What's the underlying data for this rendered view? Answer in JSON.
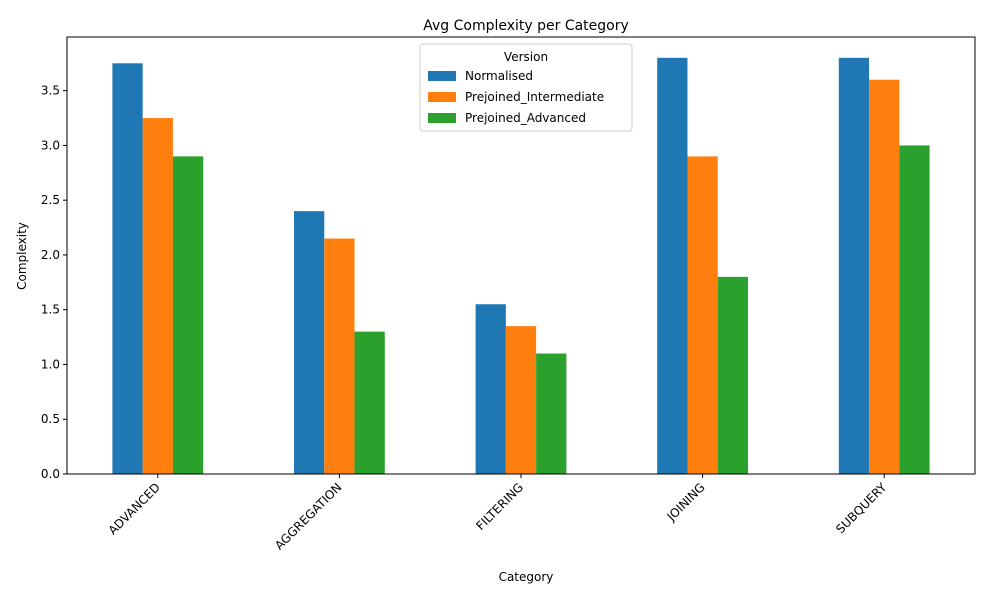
{
  "chart_data": {
    "type": "bar",
    "title": "Avg Complexity per Category",
    "xlabel": "Category",
    "ylabel": "Complexity",
    "categories": [
      "ADVANCED",
      "AGGREGATION",
      "FILTERING",
      "JOINING",
      "SUBQUERY"
    ],
    "series": [
      {
        "name": "Normalised",
        "values": [
          3.75,
          2.4,
          1.55,
          3.8,
          3.8
        ],
        "color": "#1f77b4"
      },
      {
        "name": "Prejoined_Intermediate",
        "values": [
          3.25,
          2.15,
          1.35,
          2.9,
          3.6
        ],
        "color": "#ff7f0e"
      },
      {
        "name": "Prejoined_Advanced",
        "values": [
          2.9,
          1.3,
          1.1,
          1.8,
          3.0
        ],
        "color": "#2ca02c"
      }
    ],
    "ylim": [
      0,
      3.99
    ],
    "yticks": [
      "0.0",
      "0.5",
      "1.0",
      "1.5",
      "2.0",
      "2.5",
      "3.0",
      "3.5"
    ],
    "legend": {
      "title": "Version",
      "placement": "upper-center"
    },
    "grid": false
  }
}
